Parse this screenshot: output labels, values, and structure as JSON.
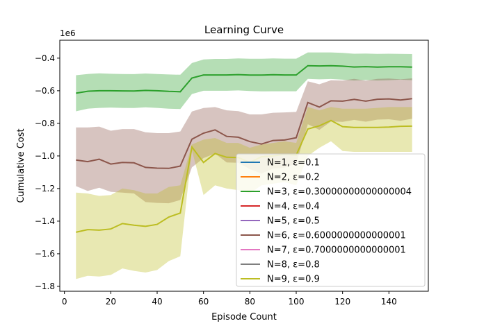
{
  "chart_data": {
    "type": "line",
    "title": "Learning Curve",
    "xlabel": "Episode Count",
    "ylabel": "Cumulative Cost",
    "y_offset_label": "1e6",
    "xlim": [
      -2,
      157
    ],
    "ylim": [
      -1.83,
      -0.29
    ],
    "y_scale_factor": 1000000,
    "x_ticks": [
      0,
      20,
      40,
      60,
      80,
      100,
      120,
      140
    ],
    "y_ticks": [
      -1.8,
      -1.6,
      -1.4,
      -1.2,
      -1.0,
      -0.8,
      -0.6,
      -0.4
    ],
    "x_tick_labels": [
      "0",
      "20",
      "40",
      "60",
      "80",
      "100",
      "120",
      "140"
    ],
    "y_tick_labels": [
      "−1.8",
      "−1.6",
      "−1.4",
      "−1.2",
      "−1.0",
      "−0.8",
      "−0.6",
      "−0.4"
    ],
    "grid": false,
    "legend_position": "lower-right",
    "x": [
      5,
      10,
      15,
      20,
      25,
      30,
      35,
      40,
      45,
      50,
      55,
      60,
      65,
      70,
      75,
      80,
      85,
      90,
      95,
      100,
      105,
      110,
      115,
      120,
      125,
      130,
      135,
      140,
      145,
      150
    ],
    "series": [
      {
        "name": "N=1, ε=0.1",
        "color": "#1f77b4",
        "values": null
      },
      {
        "name": "N=2, ε=0.2",
        "color": "#ff7f0e",
        "values": null
      },
      {
        "name": "N=3, ε=0.30000000000000004",
        "color": "#2ca02c",
        "values": [
          -0.615,
          -0.603,
          -0.6,
          -0.6,
          -0.601,
          -0.602,
          -0.598,
          -0.6,
          -0.604,
          -0.606,
          -0.522,
          -0.503,
          -0.503,
          -0.503,
          -0.501,
          -0.504,
          -0.504,
          -0.502,
          -0.503,
          -0.503,
          -0.446,
          -0.448,
          -0.446,
          -0.449,
          -0.454,
          -0.452,
          -0.455,
          -0.453,
          -0.453,
          -0.455
        ],
        "band_upper": [
          -0.505,
          -0.497,
          -0.493,
          -0.496,
          -0.497,
          -0.498,
          -0.494,
          -0.497,
          -0.5,
          -0.502,
          -0.43,
          -0.408,
          -0.405,
          -0.405,
          -0.402,
          -0.404,
          -0.404,
          -0.402,
          -0.403,
          -0.403,
          -0.365,
          -0.365,
          -0.365,
          -0.368,
          -0.373,
          -0.372,
          -0.374,
          -0.373,
          -0.374,
          -0.375
        ],
        "band_lower": [
          -0.726,
          -0.71,
          -0.705,
          -0.703,
          -0.705,
          -0.706,
          -0.702,
          -0.705,
          -0.71,
          -0.712,
          -0.62,
          -0.6,
          -0.6,
          -0.6,
          -0.598,
          -0.602,
          -0.604,
          -0.603,
          -0.603,
          -0.603,
          -0.527,
          -0.53,
          -0.528,
          -0.532,
          -0.537,
          -0.534,
          -0.537,
          -0.535,
          -0.532,
          -0.535
        ]
      },
      {
        "name": "N=4, ε=0.4",
        "color": "#d62728",
        "values": null
      },
      {
        "name": "N=5, ε=0.5",
        "color": "#9467bd",
        "values": null
      },
      {
        "name": "N=6, ε=0.6000000000000001",
        "color": "#8c564b",
        "values": [
          -1.025,
          -1.035,
          -1.02,
          -1.05,
          -1.04,
          -1.042,
          -1.07,
          -1.075,
          -1.076,
          -1.062,
          -0.897,
          -0.86,
          -0.84,
          -0.88,
          -0.885,
          -0.912,
          -0.927,
          -0.905,
          -0.902,
          -0.888,
          -0.672,
          -0.7,
          -0.662,
          -0.664,
          -0.653,
          -0.664,
          -0.652,
          -0.65,
          -0.657,
          -0.648
        ],
        "band_upper": [
          -0.825,
          -0.825,
          -0.82,
          -0.845,
          -0.835,
          -0.835,
          -0.855,
          -0.86,
          -0.86,
          -0.85,
          -0.727,
          -0.706,
          -0.7,
          -0.72,
          -0.725,
          -0.745,
          -0.745,
          -0.735,
          -0.733,
          -0.73,
          -0.542,
          -0.56,
          -0.536,
          -0.537,
          -0.527,
          -0.538,
          -0.527,
          -0.525,
          -0.53,
          -0.524
        ],
        "band_lower": [
          -1.185,
          -1.215,
          -1.195,
          -1.22,
          -1.225,
          -1.23,
          -1.283,
          -1.288,
          -1.29,
          -1.27,
          -1.07,
          -1.013,
          -0.985,
          -1.04,
          -1.042,
          -1.08,
          -1.108,
          -1.077,
          -1.072,
          -1.047,
          -0.805,
          -0.84,
          -0.788,
          -0.791,
          -0.779,
          -0.79,
          -0.777,
          -0.775,
          -0.784,
          -0.772
        ]
      },
      {
        "name": "N=7, ε=0.7000000000000001",
        "color": "#e377c2",
        "values": null
      },
      {
        "name": "N=8, ε=0.8",
        "color": "#7f7f7f",
        "values": null
      },
      {
        "name": "N=9, ε=0.9",
        "color": "#bcbd22",
        "values": [
          -1.468,
          -1.452,
          -1.455,
          -1.448,
          -1.415,
          -1.425,
          -1.432,
          -1.42,
          -1.375,
          -1.35,
          -0.945,
          -1.04,
          -0.985,
          -1.008,
          -1.01,
          -1.04,
          -1.005,
          -1.0,
          -0.99,
          -0.995,
          -0.835,
          -0.815,
          -0.782,
          -0.82,
          -0.825,
          -0.825,
          -0.825,
          -0.823,
          -0.818,
          -0.817
        ],
        "band_upper": [
          -1.225,
          -1.23,
          -1.245,
          -1.24,
          -1.2,
          -1.21,
          -1.23,
          -1.23,
          -1.19,
          -1.18,
          -0.93,
          -0.9,
          -0.89,
          -0.92,
          -0.92,
          -0.95,
          -0.93,
          -0.92,
          -0.91,
          -0.92,
          -0.7,
          -0.72,
          -0.7,
          -0.71,
          -0.71,
          -0.71,
          -0.705,
          -0.7,
          -0.7,
          -0.7
        ],
        "band_lower": [
          -1.755,
          -1.735,
          -1.74,
          -1.73,
          -1.69,
          -1.705,
          -1.715,
          -1.7,
          -1.645,
          -1.615,
          -0.965,
          -1.24,
          -1.18,
          -1.2,
          -1.21,
          -1.23,
          -1.18,
          -1.17,
          -1.16,
          -1.18,
          -1.0,
          -0.95,
          -0.91,
          -0.97,
          -0.975,
          -0.975,
          -0.975,
          -0.975,
          -0.975,
          -0.975
        ]
      }
    ]
  }
}
